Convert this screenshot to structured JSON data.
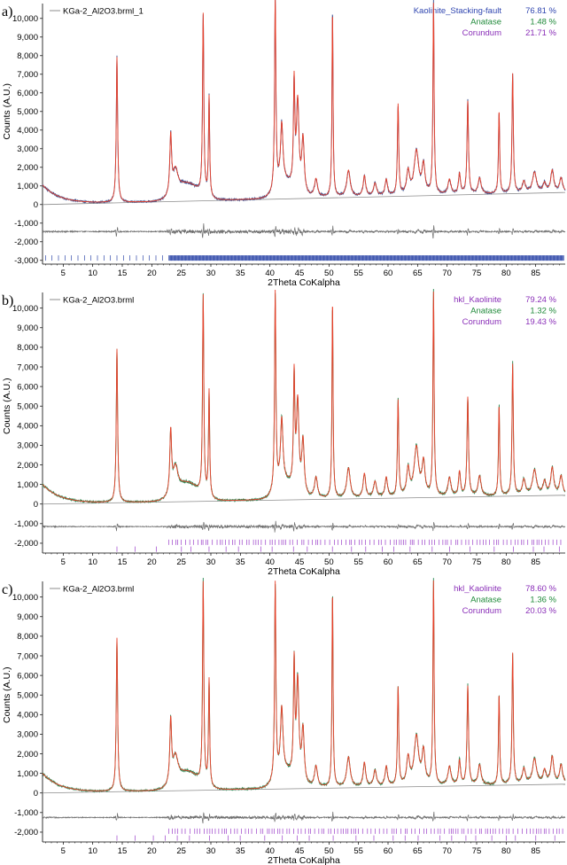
{
  "colors": {
    "observed": "#3a4f8f",
    "observed_green": "#2e8a55",
    "calculated": "#e8402a",
    "background_line": "#8c8c8c",
    "difference": "#6e6e6e",
    "phase_ticks_a": "#2e47a8",
    "phase_ticks_bc": "#9b3fc9",
    "legend_blue": "#3046b0",
    "legend_green": "#208a3a",
    "legend_purple": "#8a2fb8"
  },
  "chart_data": [
    {
      "type": "line",
      "panel_label": "a)",
      "file_label": "KGa-2_Al2O3.brml_1",
      "xlabel": "2Theta CoKalpha",
      "ylabel": "Counts (A.U.)",
      "xlim": [
        1.5,
        90
      ],
      "ylim": [
        -3200,
        10800
      ],
      "x_ticks": [
        5,
        10,
        15,
        20,
        25,
        30,
        35,
        40,
        45,
        50,
        55,
        60,
        65,
        70,
        75,
        80,
        85
      ],
      "y_ticks": [
        {
          "value": 10000,
          "label": "10,000"
        },
        {
          "value": 9000,
          "label": "9,000"
        },
        {
          "value": 8000,
          "label": "8,000"
        },
        {
          "value": 7000,
          "label": "7,000"
        },
        {
          "value": 6000,
          "label": "6,000"
        },
        {
          "value": 5000,
          "label": "5,000"
        },
        {
          "value": 4000,
          "label": "4,000"
        },
        {
          "value": 3000,
          "label": "3,000"
        },
        {
          "value": 2000,
          "label": "2,000"
        },
        {
          "value": 1000,
          "label": "1,000"
        },
        {
          "value": 0,
          "label": "0"
        },
        {
          "value": -1000,
          "label": "-1,000"
        },
        {
          "value": -2000,
          "label": "-2,000"
        },
        {
          "value": -3000,
          "label": "-3,000"
        }
      ],
      "observed_color_key": "observed",
      "background": {
        "x": [
          1.5,
          90
        ],
        "y": [
          0,
          650
        ]
      },
      "difference_baseline": -1450,
      "difference_amplitude": 1.0,
      "phases": [
        {
          "name": "Kaolinite_Stacking-fault",
          "percent": "76.81 %",
          "color_key": "legend_blue"
        },
        {
          "name": "Anatase",
          "percent": "1.48 %",
          "color_key": "legend_green"
        },
        {
          "name": "Corundum",
          "percent": "21.71 %",
          "color_key": "legend_purple"
        }
      ],
      "reflection_rows": [
        {
          "y": -2870,
          "color_key": "phase_ticks_a",
          "style": "dense",
          "sparse_from": 2.0,
          "sparse_to": 22.5,
          "sparse_step": 1.1,
          "dense_from": 22.9,
          "dense_to": 89.8,
          "dense_step": 0.12
        }
      ],
      "peaks": [
        {
          "x": 14.1,
          "y": 7900,
          "w": 0.14
        },
        {
          "x": 23.2,
          "y": 3300,
          "w": 0.18
        },
        {
          "x": 24.0,
          "y": 1400,
          "w": 0.5
        },
        {
          "x": 28.7,
          "y": 9900,
          "w": 0.13
        },
        {
          "x": 29.7,
          "y": 5600,
          "w": 0.12
        },
        {
          "x": 40.9,
          "y": 10600,
          "w": 0.13
        },
        {
          "x": 42.0,
          "y": 3500,
          "w": 0.25
        },
        {
          "x": 44.1,
          "y": 5900,
          "w": 0.14
        },
        {
          "x": 44.7,
          "y": 5100,
          "w": 0.25
        },
        {
          "x": 45.6,
          "y": 3300,
          "w": 0.25
        },
        {
          "x": 47.8,
          "y": 1300,
          "w": 0.3
        },
        {
          "x": 50.6,
          "y": 10300,
          "w": 0.11
        },
        {
          "x": 53.3,
          "y": 1800,
          "w": 0.35
        },
        {
          "x": 56.0,
          "y": 1500,
          "w": 0.25
        },
        {
          "x": 57.8,
          "y": 1100,
          "w": 0.3
        },
        {
          "x": 59.7,
          "y": 1300,
          "w": 0.25
        },
        {
          "x": 61.7,
          "y": 5300,
          "w": 0.13
        },
        {
          "x": 63.4,
          "y": 1700,
          "w": 0.3
        },
        {
          "x": 64.8,
          "y": 2800,
          "w": 0.45
        },
        {
          "x": 66.0,
          "y": 2000,
          "w": 0.3
        },
        {
          "x": 67.7,
          "y": 10700,
          "w": 0.12
        },
        {
          "x": 70.4,
          "y": 1300,
          "w": 0.3
        },
        {
          "x": 72.1,
          "y": 1600,
          "w": 0.2
        },
        {
          "x": 73.5,
          "y": 5500,
          "w": 0.15
        },
        {
          "x": 75.5,
          "y": 1400,
          "w": 0.3
        },
        {
          "x": 78.8,
          "y": 5000,
          "w": 0.12
        },
        {
          "x": 81.1,
          "y": 7000,
          "w": 0.13
        },
        {
          "x": 83.0,
          "y": 1200,
          "w": 0.3
        },
        {
          "x": 84.8,
          "y": 1700,
          "w": 0.4
        },
        {
          "x": 86.5,
          "y": 1100,
          "w": 0.3
        },
        {
          "x": 87.8,
          "y": 1800,
          "w": 0.3
        },
        {
          "x": 89.3,
          "y": 1400,
          "w": 0.3
        }
      ],
      "humps": [
        {
          "x": 26.0,
          "y": 900,
          "w": 2.6
        },
        {
          "x": 42.5,
          "y": 800,
          "w": 2.0
        }
      ],
      "low_angle": {
        "y0": 1050,
        "decay": 3.0
      }
    },
    {
      "type": "line",
      "panel_label": "b)",
      "file_label": "KGa-2_Al2O3.brml",
      "xlabel": "2Theta CoKalpha",
      "ylabel": "Counts (A.U.)",
      "xlim": [
        1.5,
        90
      ],
      "ylim": [
        -2500,
        10800
      ],
      "x_ticks": [
        5,
        10,
        15,
        20,
        25,
        30,
        35,
        40,
        45,
        50,
        55,
        60,
        65,
        70,
        75,
        80,
        85
      ],
      "y_ticks": [
        {
          "value": 10000,
          "label": "10,000"
        },
        {
          "value": 9000,
          "label": "9,000"
        },
        {
          "value": 8000,
          "label": "8,000"
        },
        {
          "value": 7000,
          "label": "7,000"
        },
        {
          "value": 6000,
          "label": "6,000"
        },
        {
          "value": 5000,
          "label": "5,000"
        },
        {
          "value": 4000,
          "label": "4,000"
        },
        {
          "value": 3000,
          "label": "3,000"
        },
        {
          "value": 2000,
          "label": "2,000"
        },
        {
          "value": 1000,
          "label": "1,000"
        },
        {
          "value": 0,
          "label": "0"
        },
        {
          "value": -1000,
          "label": "-1,000"
        },
        {
          "value": -2000,
          "label": "-2,000"
        }
      ],
      "observed_color_key": "observed_green",
      "background": {
        "x": [
          1.5,
          90
        ],
        "y": [
          0,
          450
        ]
      },
      "difference_baseline": -1150,
      "difference_amplitude": 0.8,
      "phases": [
        {
          "name": "hkl_Kaolinite",
          "percent": "79.24 %",
          "color_key": "legend_purple"
        },
        {
          "name": "Anatase",
          "percent": "1.32 %",
          "color_key": "legend_green"
        },
        {
          "name": "Corundum",
          "percent": "19.43 %",
          "color_key": "legend_purple"
        }
      ],
      "reflection_rows": [
        {
          "y": -1950,
          "color_key": "phase_ticks_bc",
          "style": "sparse",
          "sparse_from": 22.9,
          "sparse_to": 89.8,
          "sparse_step": 0.55
        },
        {
          "y": -2300,
          "color_key": "phase_ticks_bc",
          "style": "sparse",
          "sparse_from": 14.1,
          "sparse_to": 89.8,
          "sparse_step": 2.9
        }
      ],
      "peaks": [
        {
          "x": 14.1,
          "y": 7900,
          "w": 0.14
        },
        {
          "x": 23.2,
          "y": 3300,
          "w": 0.18
        },
        {
          "x": 24.0,
          "y": 1400,
          "w": 0.5
        },
        {
          "x": 28.7,
          "y": 10300,
          "w": 0.13
        },
        {
          "x": 29.7,
          "y": 5600,
          "w": 0.12
        },
        {
          "x": 40.9,
          "y": 10300,
          "w": 0.13
        },
        {
          "x": 42.0,
          "y": 3500,
          "w": 0.25
        },
        {
          "x": 44.1,
          "y": 5900,
          "w": 0.14
        },
        {
          "x": 44.7,
          "y": 4800,
          "w": 0.25
        },
        {
          "x": 45.6,
          "y": 3000,
          "w": 0.25
        },
        {
          "x": 47.8,
          "y": 1300,
          "w": 0.3
        },
        {
          "x": 50.6,
          "y": 10300,
          "w": 0.11
        },
        {
          "x": 53.3,
          "y": 1800,
          "w": 0.35
        },
        {
          "x": 56.0,
          "y": 1500,
          "w": 0.25
        },
        {
          "x": 57.8,
          "y": 1100,
          "w": 0.3
        },
        {
          "x": 59.7,
          "y": 1300,
          "w": 0.25
        },
        {
          "x": 61.7,
          "y": 5200,
          "w": 0.13
        },
        {
          "x": 63.4,
          "y": 1700,
          "w": 0.3
        },
        {
          "x": 64.8,
          "y": 2800,
          "w": 0.45
        },
        {
          "x": 66.0,
          "y": 2000,
          "w": 0.3
        },
        {
          "x": 67.7,
          "y": 10700,
          "w": 0.12
        },
        {
          "x": 70.4,
          "y": 1300,
          "w": 0.3
        },
        {
          "x": 72.1,
          "y": 1600,
          "w": 0.2
        },
        {
          "x": 73.5,
          "y": 5400,
          "w": 0.15
        },
        {
          "x": 75.5,
          "y": 1400,
          "w": 0.3
        },
        {
          "x": 78.8,
          "y": 5000,
          "w": 0.12
        },
        {
          "x": 81.1,
          "y": 7100,
          "w": 0.13
        },
        {
          "x": 83.0,
          "y": 1200,
          "w": 0.3
        },
        {
          "x": 84.8,
          "y": 1700,
          "w": 0.4
        },
        {
          "x": 86.5,
          "y": 1100,
          "w": 0.3
        },
        {
          "x": 87.8,
          "y": 1800,
          "w": 0.3
        },
        {
          "x": 89.3,
          "y": 1400,
          "w": 0.3
        }
      ],
      "humps": [
        {
          "x": 26.0,
          "y": 900,
          "w": 2.6
        },
        {
          "x": 42.5,
          "y": 800,
          "w": 2.0
        }
      ],
      "low_angle": {
        "y0": 1000,
        "decay": 3.0
      }
    },
    {
      "type": "line",
      "panel_label": "c)",
      "file_label": "KGa-2_Al2O3.brml",
      "xlabel": "2Theta CoKalpha",
      "ylabel": "Counts (A.U.)",
      "xlim": [
        1.5,
        90
      ],
      "ylim": [
        -2500,
        10800
      ],
      "x_ticks": [
        5,
        10,
        15,
        20,
        25,
        30,
        35,
        40,
        45,
        50,
        55,
        60,
        65,
        70,
        75,
        80,
        85
      ],
      "y_ticks": [
        {
          "value": 10000,
          "label": "10,000"
        },
        {
          "value": 9000,
          "label": "9,000"
        },
        {
          "value": 8000,
          "label": "8,000"
        },
        {
          "value": 7000,
          "label": "7,000"
        },
        {
          "value": 6000,
          "label": "6,000"
        },
        {
          "value": 5000,
          "label": "5,000"
        },
        {
          "value": 4000,
          "label": "4,000"
        },
        {
          "value": 3000,
          "label": "3,000"
        },
        {
          "value": 2000,
          "label": "2,000"
        },
        {
          "value": 1000,
          "label": "1,000"
        },
        {
          "value": 0,
          "label": "0"
        },
        {
          "value": -1000,
          "label": "-1,000"
        },
        {
          "value": -2000,
          "label": "-2,000"
        }
      ],
      "observed_color_key": "observed_green",
      "background": {
        "x": [
          1.5,
          90
        ],
        "y": [
          0,
          450
        ]
      },
      "difference_baseline": -1250,
      "difference_amplitude": 0.8,
      "phases": [
        {
          "name": "hkl_Kaolinite",
          "percent": "78.60 %",
          "color_key": "legend_purple"
        },
        {
          "name": "Anatase",
          "percent": "1.36 %",
          "color_key": "legend_green"
        },
        {
          "name": "Corundum",
          "percent": "20.03 %",
          "color_key": "legend_purple"
        }
      ],
      "reflection_rows": [
        {
          "y": -1950,
          "color_key": "phase_ticks_bc",
          "style": "sparse",
          "sparse_from": 22.9,
          "sparse_to": 89.8,
          "sparse_step": 0.55
        },
        {
          "y": -2300,
          "color_key": "phase_ticks_bc",
          "style": "sparse",
          "sparse_from": 14.1,
          "sparse_to": 89.8,
          "sparse_step": 2.9
        }
      ],
      "peaks": [
        {
          "x": 14.1,
          "y": 7900,
          "w": 0.14
        },
        {
          "x": 23.2,
          "y": 3300,
          "w": 0.18
        },
        {
          "x": 24.0,
          "y": 1400,
          "w": 0.5
        },
        {
          "x": 28.7,
          "y": 10400,
          "w": 0.13
        },
        {
          "x": 29.7,
          "y": 5600,
          "w": 0.12
        },
        {
          "x": 40.9,
          "y": 10200,
          "w": 0.13
        },
        {
          "x": 42.0,
          "y": 3500,
          "w": 0.25
        },
        {
          "x": 44.1,
          "y": 5900,
          "w": 0.14
        },
        {
          "x": 44.7,
          "y": 5300,
          "w": 0.25
        },
        {
          "x": 45.6,
          "y": 3000,
          "w": 0.25
        },
        {
          "x": 47.8,
          "y": 1300,
          "w": 0.3
        },
        {
          "x": 50.6,
          "y": 10200,
          "w": 0.11
        },
        {
          "x": 53.3,
          "y": 1800,
          "w": 0.35
        },
        {
          "x": 56.0,
          "y": 1500,
          "w": 0.25
        },
        {
          "x": 57.8,
          "y": 1100,
          "w": 0.3
        },
        {
          "x": 59.7,
          "y": 1300,
          "w": 0.25
        },
        {
          "x": 61.7,
          "y": 5300,
          "w": 0.13
        },
        {
          "x": 63.4,
          "y": 1700,
          "w": 0.3
        },
        {
          "x": 64.8,
          "y": 2800,
          "w": 0.45
        },
        {
          "x": 66.0,
          "y": 2000,
          "w": 0.3
        },
        {
          "x": 67.7,
          "y": 10700,
          "w": 0.12
        },
        {
          "x": 70.4,
          "y": 1300,
          "w": 0.3
        },
        {
          "x": 72.1,
          "y": 1600,
          "w": 0.2
        },
        {
          "x": 73.5,
          "y": 5400,
          "w": 0.15
        },
        {
          "x": 75.5,
          "y": 1400,
          "w": 0.3
        },
        {
          "x": 78.8,
          "y": 5000,
          "w": 0.12
        },
        {
          "x": 81.1,
          "y": 7100,
          "w": 0.13
        },
        {
          "x": 83.0,
          "y": 1200,
          "w": 0.3
        },
        {
          "x": 84.8,
          "y": 1700,
          "w": 0.4
        },
        {
          "x": 86.5,
          "y": 1100,
          "w": 0.3
        },
        {
          "x": 87.8,
          "y": 1800,
          "w": 0.3
        },
        {
          "x": 89.3,
          "y": 1400,
          "w": 0.3
        }
      ],
      "humps": [
        {
          "x": 26.0,
          "y": 900,
          "w": 2.6
        },
        {
          "x": 42.5,
          "y": 800,
          "w": 2.0
        }
      ],
      "low_angle": {
        "y0": 1000,
        "decay": 3.0
      }
    }
  ]
}
